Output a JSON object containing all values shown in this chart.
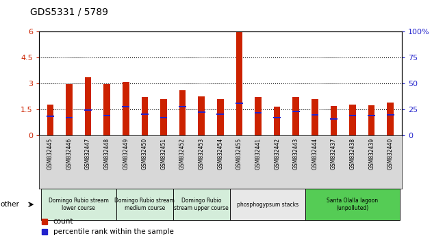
{
  "title": "GDS5331 / 5789",
  "samples": [
    "GSM832445",
    "GSM832446",
    "GSM832447",
    "GSM832448",
    "GSM832449",
    "GSM832450",
    "GSM832451",
    "GSM832452",
    "GSM832453",
    "GSM832454",
    "GSM832455",
    "GSM832441",
    "GSM832442",
    "GSM832443",
    "GSM832444",
    "GSM832437",
    "GSM832438",
    "GSM832439",
    "GSM832440"
  ],
  "counts": [
    1.8,
    2.95,
    3.35,
    2.95,
    3.1,
    2.2,
    2.1,
    2.6,
    2.25,
    2.1,
    6.0,
    2.2,
    1.65,
    2.2,
    2.1,
    1.7,
    1.8,
    1.75,
    1.9
  ],
  "percentile_ranks": [
    1.1,
    1.05,
    1.45,
    1.15,
    1.65,
    1.25,
    1.05,
    1.65,
    1.35,
    1.25,
    1.85,
    1.3,
    1.05,
    1.4,
    1.2,
    0.95,
    1.15,
    1.15,
    1.2
  ],
  "groups": [
    {
      "label": "Domingo Rubio stream\nlower course",
      "start": 0,
      "end": 4,
      "color": "#d4edda"
    },
    {
      "label": "Domingo Rubio stream\nmedium course",
      "start": 4,
      "end": 7,
      "color": "#d4edda"
    },
    {
      "label": "Domingo Rubio\nstream upper course",
      "start": 7,
      "end": 10,
      "color": "#d4edda"
    },
    {
      "label": "phosphogypsum stacks",
      "start": 10,
      "end": 14,
      "color": "#e8e8e8"
    },
    {
      "label": "Santa Olalla lagoon\n(unpolluted)",
      "start": 14,
      "end": 19,
      "color": "#55cc55"
    }
  ],
  "bar_color": "#cc2200",
  "percentile_color": "#2222cc",
  "ylim_left": [
    0,
    6
  ],
  "ylim_right": [
    0,
    100
  ],
  "yticks_left": [
    0,
    1.5,
    3.0,
    4.5,
    6.0
  ],
  "yticks_right": [
    0,
    25,
    50,
    75,
    100
  ],
  "dotted_lines": [
    1.5,
    3.0,
    4.5
  ],
  "bar_width": 0.35,
  "background_color": "#ffffff",
  "other_label": "other",
  "legend_count_label": "count",
  "legend_percentile_label": "percentile rank within the sample"
}
